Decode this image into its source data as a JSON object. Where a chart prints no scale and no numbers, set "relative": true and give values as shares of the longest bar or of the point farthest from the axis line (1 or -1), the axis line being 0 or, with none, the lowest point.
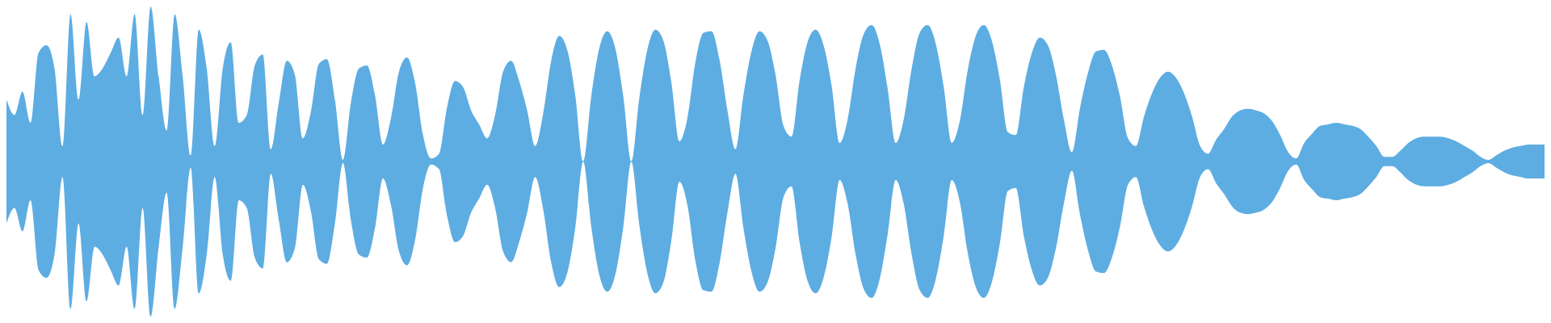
{
  "chart_data": {
    "type": "area",
    "relative": true,
    "tick_labels": false,
    "ref_lines": [
      {
        "axis": "y",
        "value": 0,
        "color": "#5dade2"
      }
    ],
    "categories": [
      null,
      null,
      null,
      null,
      null,
      null,
      null,
      null,
      null,
      null,
      null,
      null,
      null,
      null,
      null,
      null,
      null,
      null,
      null,
      null,
      null,
      null,
      null,
      null,
      null,
      null,
      null,
      null,
      null,
      null,
      null,
      null,
      null,
      null,
      null,
      null,
      null,
      null,
      null,
      null,
      null,
      null,
      null,
      null,
      null,
      null,
      null,
      null,
      null,
      null,
      null,
      null,
      null,
      null,
      null,
      null,
      null,
      null,
      null,
      null,
      null,
      null,
      null,
      null,
      null,
      null,
      null,
      null,
      null,
      null,
      null,
      null,
      null,
      null,
      null,
      null,
      null,
      null,
      null,
      null,
      null,
      null,
      null,
      null,
      null,
      null,
      null,
      null,
      null,
      null,
      null,
      null,
      null,
      null,
      null,
      null,
      null,
      null,
      null,
      null,
      null,
      null,
      null,
      null,
      null,
      null,
      null,
      null,
      null,
      null,
      null,
      null,
      null,
      null,
      null,
      null,
      null,
      null,
      null,
      null,
      null,
      null,
      null,
      null,
      null,
      null,
      null,
      null,
      null,
      null,
      null,
      null,
      null,
      null,
      null,
      null,
      null,
      null,
      null,
      null,
      null,
      null,
      null,
      null,
      null,
      null,
      null,
      null,
      null,
      null,
      null,
      null,
      null,
      null,
      null,
      null,
      null,
      null,
      null,
      null,
      null,
      null,
      null,
      null,
      null,
      null,
      null,
      null,
      null,
      null,
      null,
      null,
      null,
      null,
      null,
      null,
      null,
      null,
      null,
      null,
      null,
      null,
      null,
      null,
      null,
      null,
      null,
      null,
      null,
      null,
      null,
      null,
      null
    ],
    "series": [
      {
        "color": "#5dade2",
        "values": [
          0.4,
          0.3,
          0.45,
          0.25,
          0.7,
          0.75,
          0.6,
          0.1,
          0.95,
          0.4,
          0.9,
          0.55,
          0.6,
          0.7,
          0.8,
          0.55,
          0.95,
          0.3,
          1,
          0.55,
          0.2,
          0.95,
          0.55,
          0.04,
          0.85,
          0.6,
          0.1,
          0.6,
          0.77,
          0.25,
          0.3,
          0.62,
          0.69,
          0.08,
          0.38,
          0.65,
          0.56,
          0.15,
          0.32,
          0.63,
          0.66,
          0.4,
          0.01,
          0.38,
          0.6,
          0.62,
          0.43,
          0.11,
          0.28,
          0.58,
          0.67,
          0.51,
          0.17,
          0.02,
          0.05,
          0.35,
          0.52,
          0.48,
          0.33,
          0.24,
          0.15,
          0.3,
          0.58,
          0.65,
          0.52,
          0.33,
          0.1,
          0.31,
          0.65,
          0.81,
          0.72,
          0.43,
          0,
          0.42,
          0.73,
          0.84,
          0.73,
          0.42,
          0,
          0.41,
          0.72,
          0.85,
          0.78,
          0.51,
          0.13,
          0.28,
          0.64,
          0.83,
          0.84,
          0.66,
          0.33,
          0.08,
          0.43,
          0.71,
          0.84,
          0.78,
          0.56,
          0.23,
          0.16,
          0.52,
          0.77,
          0.85,
          0.75,
          0.49,
          0.12,
          0.27,
          0.6,
          0.82,
          0.88,
          0.76,
          0.47,
          0.12,
          0.27,
          0.6,
          0.83,
          0.88,
          0.76,
          0.48,
          0.12,
          0.26,
          0.59,
          0.81,
          0.88,
          0.78,
          0.53,
          0.19,
          0.17,
          0.48,
          0.7,
          0.8,
          0.75,
          0.56,
          0.27,
          0.06,
          0.34,
          0.57,
          0.71,
          0.72,
          0.62,
          0.42,
          0.15,
          0.1,
          0.29,
          0.44,
          0.54,
          0.58,
          0.54,
          0.44,
          0.29,
          0.1,
          0.05,
          0.14,
          0.21,
          0.29,
          0.33,
          0.34,
          0.33,
          0.31,
          0.26,
          0.17,
          0.06,
          0.02,
          0.12,
          0.18,
          0.23,
          0.24,
          0.25,
          0.24,
          0.23,
          0.21,
          0.16,
          0.1,
          0.03,
          0.03,
          0.07,
          0.12,
          0.15,
          0.16,
          0.16,
          0.16,
          0.15,
          0.13,
          0.1,
          0.07,
          0.03,
          0.01,
          0.04,
          0.07,
          0.09,
          0.1,
          0.11,
          0.11,
          0.11
        ]
      },
      {
        "color": "#5dade2",
        "values": [
          -0.4,
          -0.3,
          -0.45,
          -0.25,
          -0.7,
          -0.75,
          -0.6,
          -0.1,
          -0.95,
          -0.4,
          -0.9,
          -0.55,
          -0.6,
          -0.7,
          -0.8,
          -0.55,
          -0.95,
          -0.3,
          -1,
          -0.55,
          -0.2,
          -0.95,
          -0.55,
          -0.04,
          -0.85,
          -0.6,
          -0.1,
          -0.6,
          -0.77,
          -0.25,
          -0.3,
          -0.62,
          -0.69,
          -0.08,
          -0.38,
          -0.65,
          -0.56,
          -0.15,
          -0.32,
          -0.63,
          -0.66,
          -0.4,
          -0.01,
          -0.38,
          -0.6,
          -0.62,
          -0.43,
          -0.11,
          -0.28,
          -0.58,
          -0.67,
          -0.51,
          -0.17,
          -0.02,
          -0.05,
          -0.35,
          -0.52,
          -0.48,
          -0.33,
          -0.24,
          -0.15,
          -0.3,
          -0.58,
          -0.65,
          -0.52,
          -0.33,
          -0.1,
          -0.31,
          -0.65,
          -0.81,
          -0.72,
          -0.43,
          0,
          -0.42,
          -0.73,
          -0.84,
          -0.73,
          -0.42,
          0,
          -0.41,
          -0.72,
          -0.85,
          -0.78,
          -0.51,
          -0.13,
          -0.28,
          -0.64,
          -0.83,
          -0.84,
          -0.66,
          -0.33,
          -0.08,
          -0.43,
          -0.71,
          -0.84,
          -0.78,
          -0.56,
          -0.23,
          -0.16,
          -0.52,
          -0.77,
          -0.85,
          -0.75,
          -0.49,
          -0.12,
          -0.27,
          -0.6,
          -0.82,
          -0.88,
          -0.76,
          -0.47,
          -0.12,
          -0.27,
          -0.6,
          -0.83,
          -0.88,
          -0.76,
          -0.48,
          -0.12,
          -0.26,
          -0.59,
          -0.81,
          -0.88,
          -0.78,
          -0.53,
          -0.19,
          -0.17,
          -0.48,
          -0.7,
          -0.8,
          -0.75,
          -0.56,
          -0.27,
          -0.06,
          -0.34,
          -0.57,
          -0.71,
          -0.72,
          -0.62,
          -0.42,
          -0.15,
          -0.1,
          -0.29,
          -0.44,
          -0.54,
          -0.58,
          -0.54,
          -0.44,
          -0.29,
          -0.1,
          -0.05,
          -0.14,
          -0.21,
          -0.29,
          -0.33,
          -0.34,
          -0.33,
          -0.31,
          -0.26,
          -0.17,
          -0.06,
          -0.02,
          -0.12,
          -0.18,
          -0.23,
          -0.24,
          -0.25,
          -0.24,
          -0.23,
          -0.21,
          -0.16,
          -0.1,
          -0.03,
          -0.03,
          -0.07,
          -0.12,
          -0.15,
          -0.16,
          -0.16,
          -0.16,
          -0.15,
          -0.13,
          -0.1,
          -0.07,
          -0.03,
          -0.01,
          -0.04,
          -0.07,
          -0.09,
          -0.1,
          -0.11,
          -0.11,
          -0.11
        ]
      }
    ]
  }
}
